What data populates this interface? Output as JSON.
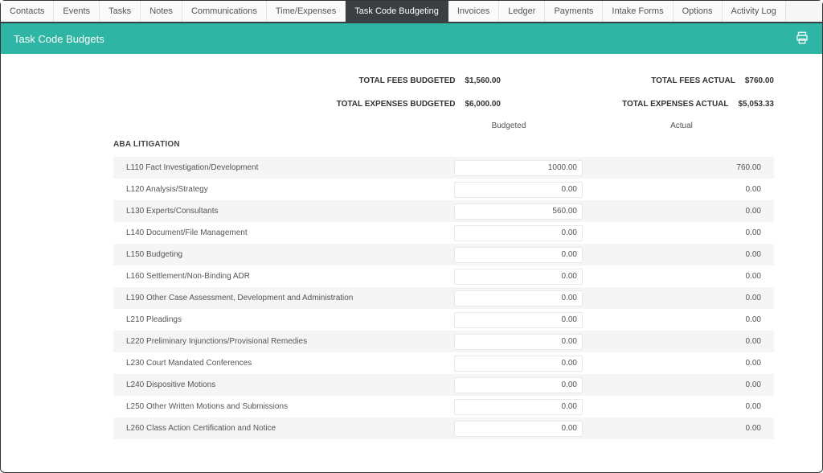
{
  "colors": {
    "header_bg": "#2eb5a3",
    "active_tab_bg": "#3a3f44",
    "row_alt_bg": "#f5f5f5",
    "text": "#444444",
    "border": "#e4e4e4"
  },
  "tabs": [
    {
      "label": "Contacts",
      "active": false
    },
    {
      "label": "Events",
      "active": false
    },
    {
      "label": "Tasks",
      "active": false
    },
    {
      "label": "Notes",
      "active": false
    },
    {
      "label": "Communications",
      "active": false
    },
    {
      "label": "Time/Expenses",
      "active": false
    },
    {
      "label": "Task Code Budgeting",
      "active": true
    },
    {
      "label": "Invoices",
      "active": false
    },
    {
      "label": "Ledger",
      "active": false
    },
    {
      "label": "Payments",
      "active": false
    },
    {
      "label": "Intake Forms",
      "active": false
    },
    {
      "label": "Options",
      "active": false
    },
    {
      "label": "Activity Log",
      "active": false
    }
  ],
  "header": {
    "title": "Task Code Budgets"
  },
  "totals": {
    "fees_budgeted_label": "TOTAL FEES BUDGETED",
    "fees_budgeted_value": "$1,560.00",
    "fees_actual_label": "TOTAL FEES ACTUAL",
    "fees_actual_value": "$760.00",
    "expenses_budgeted_label": "TOTAL EXPENSES BUDGETED",
    "expenses_budgeted_value": "$6,000.00",
    "expenses_actual_label": "TOTAL EXPENSES ACTUAL",
    "expenses_actual_value": "$5,053.33"
  },
  "column_headers": {
    "budgeted": "Budgeted",
    "actual": "Actual"
  },
  "section": {
    "title": "ABA LITIGATION"
  },
  "rows": [
    {
      "label": "L110 Fact Investigation/Development",
      "budgeted": "1000.00",
      "actual": "760.00"
    },
    {
      "label": "L120 Analysis/Strategy",
      "budgeted": "0.00",
      "actual": "0.00"
    },
    {
      "label": "L130 Experts/Consultants",
      "budgeted": "560.00",
      "actual": "0.00"
    },
    {
      "label": "L140 Document/File Management",
      "budgeted": "0.00",
      "actual": "0.00"
    },
    {
      "label": "L150 Budgeting",
      "budgeted": "0.00",
      "actual": "0.00"
    },
    {
      "label": "L160 Settlement/Non-Binding ADR",
      "budgeted": "0.00",
      "actual": "0.00"
    },
    {
      "label": "L190 Other Case Assessment, Development and Administration",
      "budgeted": "0.00",
      "actual": "0.00"
    },
    {
      "label": "L210 Pleadings",
      "budgeted": "0.00",
      "actual": "0.00"
    },
    {
      "label": "L220 Preliminary Injunctions/Provisional Remedies",
      "budgeted": "0.00",
      "actual": "0.00"
    },
    {
      "label": "L230 Court Mandated Conferences",
      "budgeted": "0.00",
      "actual": "0.00"
    },
    {
      "label": "L240 Dispositive Motions",
      "budgeted": "0.00",
      "actual": "0.00"
    },
    {
      "label": "L250 Other Written Motions and Submissions",
      "budgeted": "0.00",
      "actual": "0.00"
    },
    {
      "label": "L260 Class Action Certification and Notice",
      "budgeted": "0.00",
      "actual": "0.00"
    }
  ]
}
